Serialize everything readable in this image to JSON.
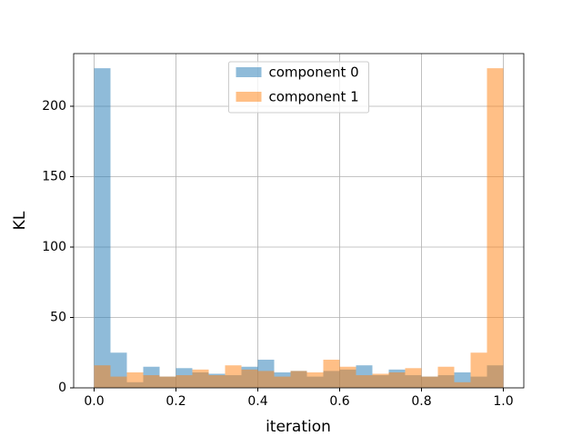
{
  "chart_data": {
    "type": "histogram",
    "x_label": "iteration",
    "y_label": "KL",
    "bins": [
      0,
      0.04,
      0.08,
      0.12,
      0.16,
      0.2,
      0.24,
      0.28,
      0.32,
      0.36,
      0.4,
      0.44,
      0.48,
      0.52,
      0.56,
      0.6,
      0.64,
      0.68,
      0.72,
      0.76,
      0.8,
      0.84,
      0.88,
      0.92,
      0.96,
      1
    ],
    "series": [
      {
        "name": "component 0",
        "color": "#1f77b4",
        "opacity": 0.5,
        "values": [
          227,
          25,
          4,
          15,
          8,
          14,
          11,
          10,
          9,
          15,
          20,
          11,
          12,
          8,
          12,
          13,
          16,
          9,
          13,
          9,
          8,
          9,
          11,
          8,
          16
        ]
      },
      {
        "name": "component 1",
        "color": "#ff7f0e",
        "opacity": 0.5,
        "values": [
          16,
          8,
          11,
          9,
          8,
          9,
          13,
          9,
          16,
          13,
          12,
          8,
          12,
          11,
          20,
          15,
          9,
          10,
          11,
          14,
          8,
          15,
          4,
          25,
          227
        ]
      }
    ],
    "xlim": [
      -0.05,
      1.05
    ],
    "ylim": [
      0,
      237.4
    ],
    "xticks": [
      {
        "value": 0,
        "label": "0.0"
      },
      0.2,
      0.4,
      0.6,
      0.8,
      {
        "value": 1,
        "label": "1.0"
      }
    ],
    "yticks": [
      0,
      50,
      100,
      150,
      200
    ],
    "grid": true,
    "legend": "upper center"
  }
}
